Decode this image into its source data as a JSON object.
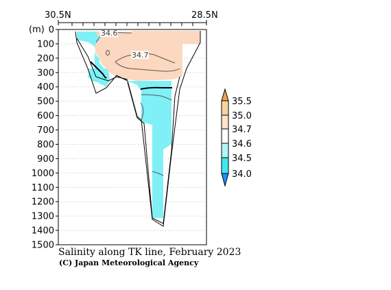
{
  "chart_data": {
    "type": "heatmap",
    "title": "Salinity along TK line, February 2023",
    "credit": "(C) Japan Meteorological Agency",
    "x_ticks_top": [
      "30.5N",
      "28.5N"
    ],
    "y_unit": "(m)",
    "y_ticks": [
      "0",
      "100",
      "200",
      "300",
      "400",
      "500",
      "600",
      "700",
      "800",
      "900",
      "1000",
      "1100",
      "1200",
      "1300",
      "1400",
      "1500"
    ],
    "ylim": [
      1500,
      0
    ],
    "grid": true,
    "colorbar": {
      "labels": [
        "35.5",
        "35.0",
        "34.7",
        "34.6",
        "34.5",
        "34.0"
      ],
      "colors": [
        "#f0a050",
        "#fad4a0",
        "#fde4cc",
        "#ffffff",
        "#b4f6f6",
        "#40e8ee",
        "#1e90ff"
      ]
    },
    "contour_labels": [
      "34.6",
      "34.7"
    ],
    "colors": {
      "fresh": "#7ef0f6",
      "mid": "#fbd8bf",
      "contour": "#555555",
      "thick_contour": "#000000"
    }
  }
}
